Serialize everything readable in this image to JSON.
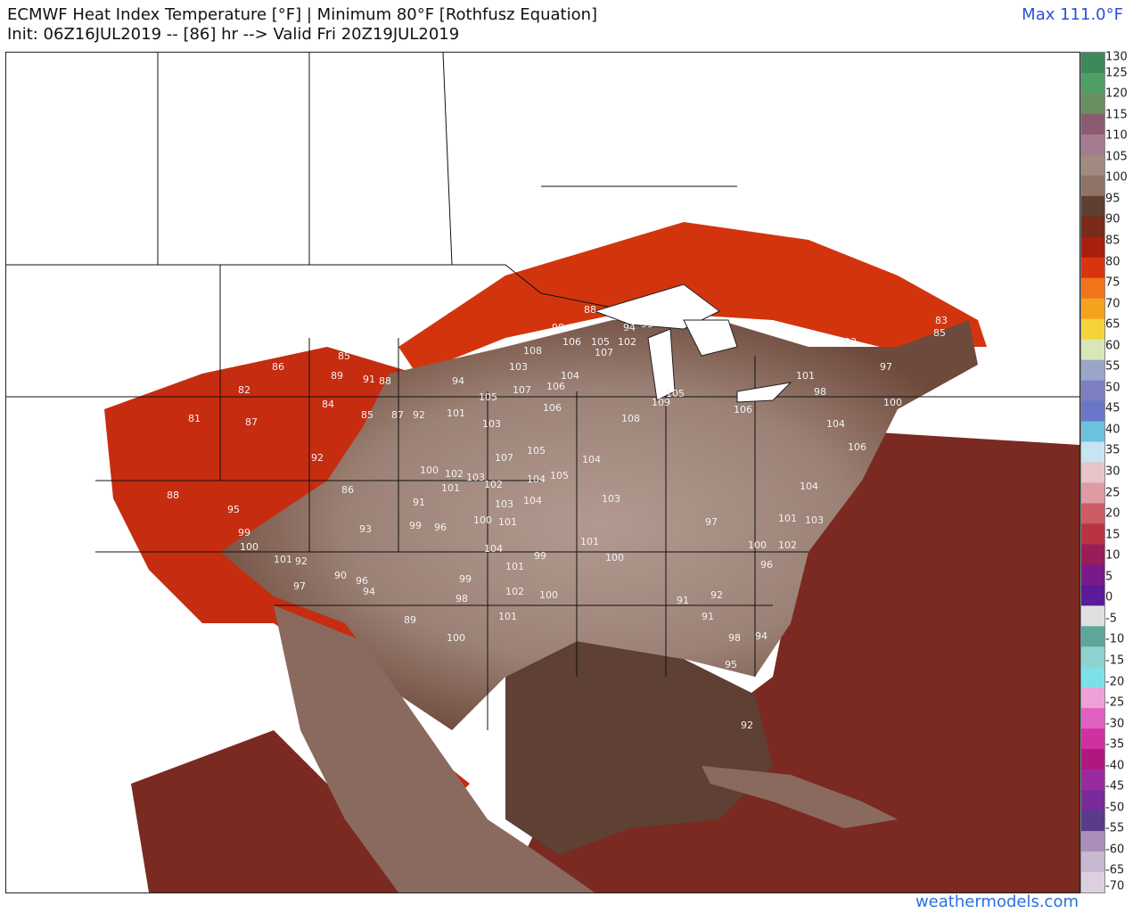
{
  "header": {
    "title_line1": "ECMWF Heat Index Temperature [°F] | Minimum 80°F [Rothfusz Equation]",
    "title_line2": "Init: 06Z16JUL2019 -- [86] hr --> Valid Fri 20Z19JUL2019",
    "max_label": "Max 111.0°F"
  },
  "footer": {
    "credit": "weathermodels.com"
  },
  "legend": {
    "ticks": [
      "130",
      "125",
      "120",
      "115",
      "110",
      "105",
      "100",
      "95",
      "90",
      "85",
      "80",
      "75",
      "70",
      "65",
      "60",
      "55",
      "50",
      "45",
      "40",
      "35",
      "30",
      "25",
      "20",
      "15",
      "10",
      "5",
      "0",
      "-5",
      "-10",
      "-15",
      "-20",
      "-25",
      "-30",
      "-35",
      "-40",
      "-45",
      "-50",
      "-55",
      "-60",
      "-65",
      "-70"
    ],
    "colors": [
      "#3c8a5a",
      "#4f9e68",
      "#6a8f5f",
      "#8c5a73",
      "#a57b8e",
      "#a38a80",
      "#8e7467",
      "#5e3f31",
      "#7a2a18",
      "#a81f0f",
      "#d93410",
      "#f27418",
      "#f5a21f",
      "#f4d43a",
      "#d9e6b8",
      "#9aa6c9",
      "#7c7fc0",
      "#6a76c8",
      "#6cc3e0",
      "#c8e4f0",
      "#e8c3c8",
      "#e09ba2",
      "#cc5b63",
      "#b83444",
      "#9a1c5a",
      "#7a1a8a",
      "#5a1a9a",
      "#e0e0e0",
      "#5fa69a",
      "#8fd0d0",
      "#7de0e8",
      "#f0a0d8",
      "#e060c0",
      "#d030a0",
      "#b01880",
      "#9a2aa0",
      "#7a2a9a",
      "#5a3a8a",
      "#aa90b8",
      "#c8b8d0",
      "#dcd0e0"
    ]
  },
  "map_labels": [
    {
      "t": "88"
    },
    {
      "t": "94"
    },
    {
      "t": "95"
    },
    {
      "t": "98"
    },
    {
      "t": "106"
    },
    {
      "t": "105"
    },
    {
      "t": "102"
    },
    {
      "t": "107"
    },
    {
      "t": "108"
    },
    {
      "t": "103"
    },
    {
      "t": "104"
    },
    {
      "t": "106"
    },
    {
      "t": "105"
    },
    {
      "t": "107"
    },
    {
      "t": "101"
    },
    {
      "t": "103"
    },
    {
      "t": "105"
    },
    {
      "t": "107"
    },
    {
      "t": "104"
    },
    {
      "t": "106"
    },
    {
      "t": "102"
    },
    {
      "t": "103"
    },
    {
      "t": "104"
    },
    {
      "t": "105"
    },
    {
      "t": "100"
    },
    {
      "t": "101"
    },
    {
      "t": "102"
    },
    {
      "t": "103"
    },
    {
      "t": "104"
    },
    {
      "t": "99"
    },
    {
      "t": "100"
    },
    {
      "t": "101"
    },
    {
      "t": "103"
    },
    {
      "t": "101"
    },
    {
      "t": "104"
    },
    {
      "t": "99"
    },
    {
      "t": "101"
    },
    {
      "t": "100"
    },
    {
      "t": "102"
    },
    {
      "t": "100"
    },
    {
      "t": "101"
    },
    {
      "t": "99"
    },
    {
      "t": "100"
    },
    {
      "t": "98"
    },
    {
      "t": "96"
    },
    {
      "t": "91"
    },
    {
      "t": "94"
    },
    {
      "t": "92"
    },
    {
      "t": "85"
    },
    {
      "t": "87"
    },
    {
      "t": "82"
    },
    {
      "t": "86"
    },
    {
      "t": "85"
    },
    {
      "t": "89"
    },
    {
      "t": "91"
    },
    {
      "t": "88"
    },
    {
      "t": "84"
    },
    {
      "t": "81"
    },
    {
      "t": "87"
    },
    {
      "t": "92"
    },
    {
      "t": "95"
    },
    {
      "t": "99"
    },
    {
      "t": "100"
    },
    {
      "t": "101"
    },
    {
      "t": "92"
    },
    {
      "t": "97"
    },
    {
      "t": "90"
    },
    {
      "t": "96"
    },
    {
      "t": "94"
    },
    {
      "t": "93"
    },
    {
      "t": "89"
    },
    {
      "t": "88"
    },
    {
      "t": "86"
    },
    {
      "t": "83"
    },
    {
      "t": "85"
    },
    {
      "t": "93"
    },
    {
      "t": "97"
    },
    {
      "t": "98"
    },
    {
      "t": "101"
    },
    {
      "t": "104"
    },
    {
      "t": "100"
    },
    {
      "t": "105"
    },
    {
      "t": "109"
    },
    {
      "t": "106"
    },
    {
      "t": "108"
    },
    {
      "t": "97"
    },
    {
      "t": "95"
    },
    {
      "t": "92"
    },
    {
      "t": "94"
    },
    {
      "t": "96"
    },
    {
      "t": "91"
    },
    {
      "t": "100"
    },
    {
      "t": "101"
    },
    {
      "t": "104"
    },
    {
      "t": "98"
    },
    {
      "t": "102"
    },
    {
      "t": "106"
    },
    {
      "t": "103"
    },
    {
      "t": "91"
    },
    {
      "t": "92"
    }
  ]
}
